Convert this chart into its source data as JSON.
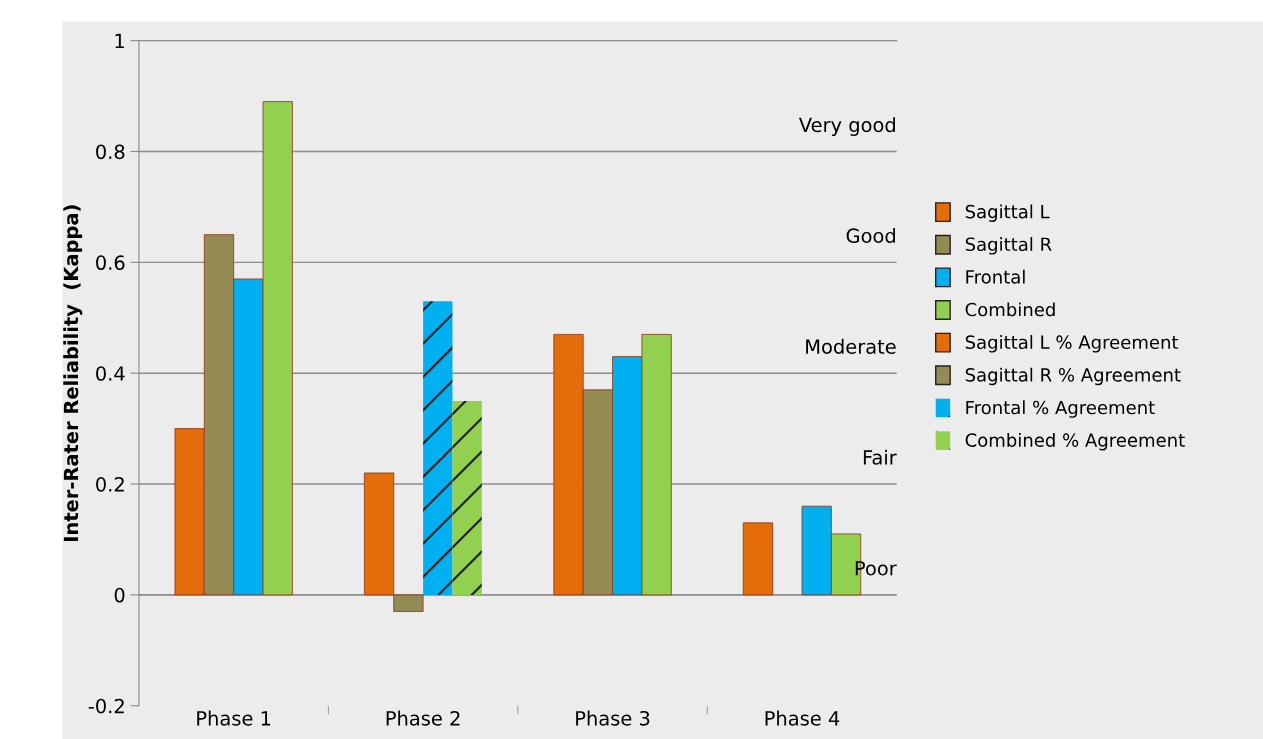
{
  "chart_data": {
    "type": "bar",
    "ylabel": "Inter-Rater Reliability  (Kappa)",
    "categories": [
      "Phase 1",
      "Phase 2",
      "Phase 3",
      "Phase 4"
    ],
    "series": [
      {
        "name": "Sagittal L",
        "color": "#e46c0a",
        "values": [
          0.3,
          null,
          0.47,
          0.13
        ]
      },
      {
        "name": "Sagittal R",
        "color": "#948a54",
        "values": [
          0.65,
          null,
          0.37,
          null
        ]
      },
      {
        "name": "Frontal",
        "color": "#00b0f0",
        "values": [
          0.57,
          null,
          0.43,
          0.16
        ]
      },
      {
        "name": "Combined",
        "color": "#92d050",
        "values": [
          0.89,
          null,
          0.47,
          0.11
        ]
      },
      {
        "name": "Sagittal L % Agreement",
        "color": "#e46c0a",
        "values": [
          null,
          0.22,
          null,
          null
        ]
      },
      {
        "name": "Sagittal R % Agreement",
        "color": "#948a54",
        "values": [
          null,
          -0.03,
          null,
          null
        ]
      },
      {
        "name": "Frontal % Agreement",
        "color": "#00b0f0",
        "values": [
          null,
          0.53,
          null,
          null
        ]
      },
      {
        "name": "Combined % Agreement",
        "color": "#92d050",
        "values": [
          null,
          0.35,
          null,
          null
        ]
      }
    ],
    "ylim": [
      -0.2,
      1
    ],
    "yticks": [
      -0.2,
      0,
      0.2,
      0.4,
      0.6,
      0.8,
      1
    ],
    "ref_lines": [
      {
        "axis": "y",
        "value": 0,
        "label": "Poor"
      },
      {
        "axis": "y",
        "value": 0.2,
        "label": "Fair"
      },
      {
        "axis": "y",
        "value": 0.4,
        "label": "Moderate"
      },
      {
        "axis": "y",
        "value": 0.6,
        "label": "Good"
      },
      {
        "axis": "y",
        "value": 0.8,
        "label": "Very good"
      }
    ],
    "legend": "right"
  }
}
